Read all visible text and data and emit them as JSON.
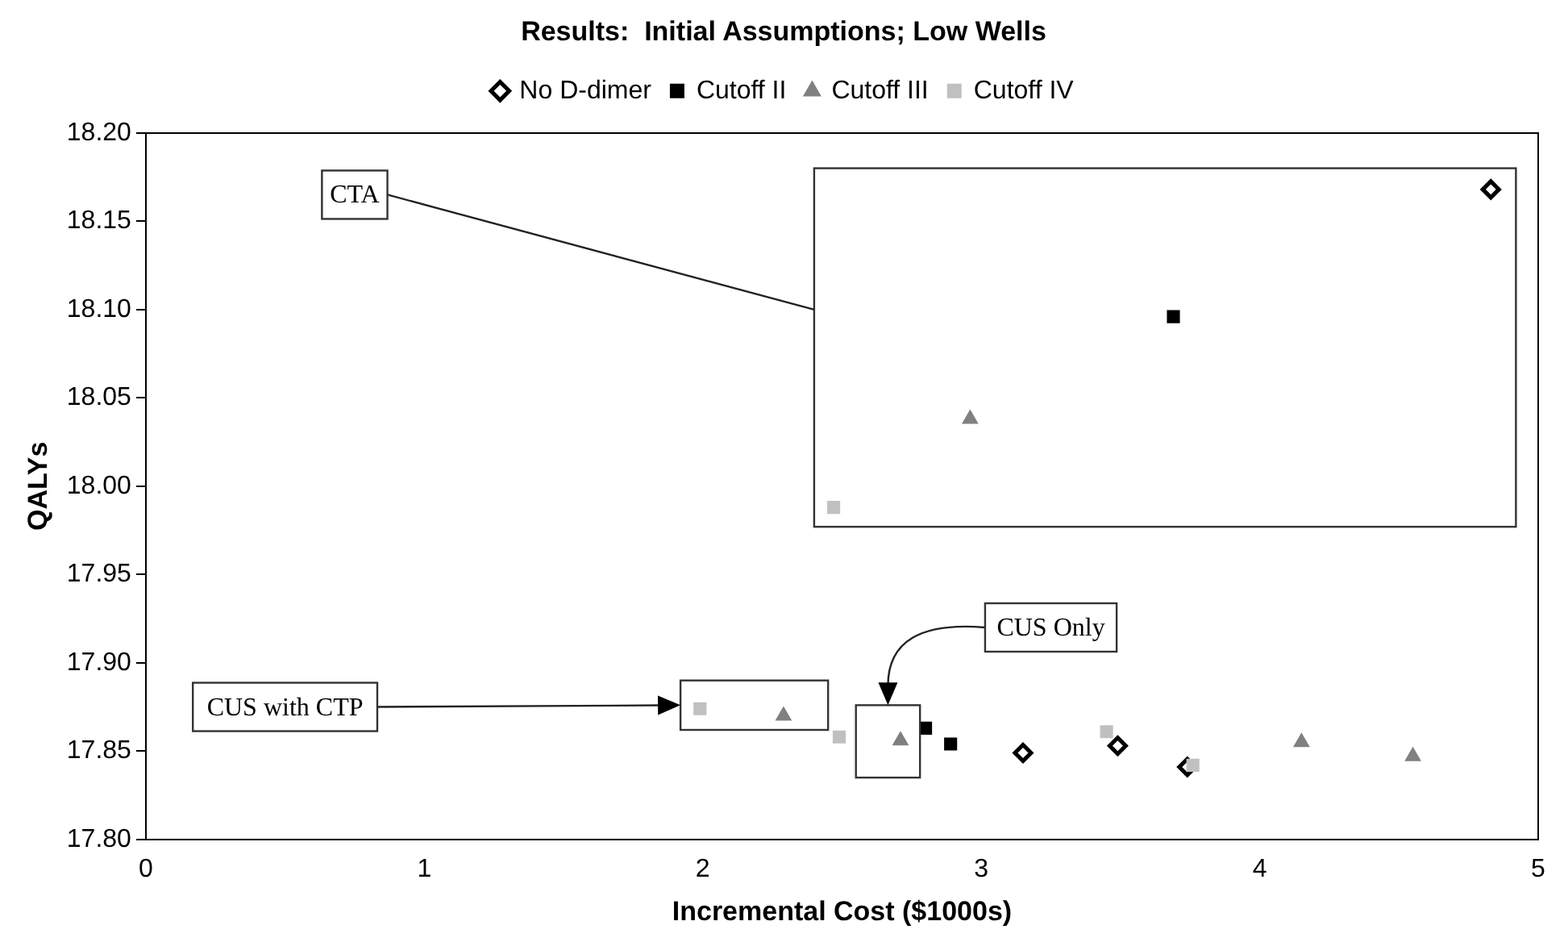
{
  "chart_data": {
    "type": "scatter",
    "title": "Results:  Initial Assumptions; Low Wells",
    "xlabel": "Incremental Cost ($1000s)",
    "ylabel": "QALYs",
    "xlim": [
      0,
      5
    ],
    "xticks": [
      0,
      1,
      2,
      3,
      4,
      5
    ],
    "ylim": [
      17.8,
      18.2
    ],
    "yticks": [
      {
        "value": 17.8,
        "label": "17.80"
      },
      {
        "value": 17.85,
        "label": "17.85"
      },
      {
        "value": 17.9,
        "label": "17.90"
      },
      {
        "value": 17.95,
        "label": "17.95"
      },
      {
        "value": 18.0,
        "label": "18.00"
      },
      {
        "value": 18.05,
        "label": "18.05"
      },
      {
        "value": 18.1,
        "label": "18.10"
      },
      {
        "value": 18.15,
        "label": "18.15"
      },
      {
        "value": 18.2,
        "label": "18.20"
      }
    ],
    "grid": false,
    "legend": "top",
    "series": [
      {
        "name": "No D-dimer",
        "color": "#000000",
        "marker": "diamond",
        "x": [
          3.15,
          3.49,
          3.74,
          4.83
        ],
        "values": [
          17.849,
          17.853,
          17.841,
          18.168
        ]
      },
      {
        "name": "Cutoff II",
        "color": "#000000",
        "marker": "square",
        "x": [
          2.8,
          2.89,
          3.69
        ],
        "values": [
          17.863,
          17.854,
          18.096
        ]
      },
      {
        "name": "Cutoff III",
        "color": "#808080",
        "marker": "triangle",
        "x": [
          2.29,
          2.71,
          4.15,
          4.55,
          2.96
        ],
        "values": [
          17.87,
          17.856,
          17.855,
          17.847,
          18.038
        ]
      },
      {
        "name": "Cutoff IV",
        "color": "#c0c0c0",
        "marker": "square",
        "x": [
          1.99,
          2.49,
          3.45,
          3.76,
          2.47
        ],
        "values": [
          17.874,
          17.858,
          17.861,
          17.842,
          17.988
        ]
      }
    ],
    "annotations": [
      "CTA",
      "CUS with CTP",
      "CUS Only"
    ]
  }
}
